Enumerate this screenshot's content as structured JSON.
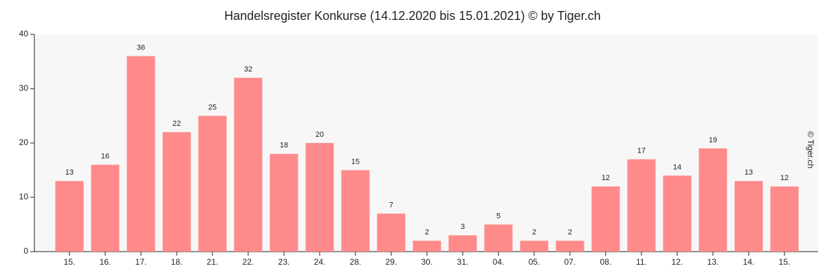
{
  "chart_data": {
    "type": "bar",
    "title": "Handelsregister Konkurse (14.12.2020 bis 15.01.2021) © by Tiger.ch",
    "watermark": "© Tiger.ch",
    "categories": [
      "15.",
      "16.",
      "17.",
      "18.",
      "21.",
      "22.",
      "23.",
      "24.",
      "28.",
      "29.",
      "30.",
      "31.",
      "04.",
      "05.",
      "07.",
      "08.",
      "11.",
      "12.",
      "13.",
      "14.",
      "15."
    ],
    "values": [
      13,
      16,
      36,
      22,
      25,
      32,
      18,
      20,
      15,
      7,
      2,
      3,
      5,
      2,
      2,
      12,
      17,
      14,
      19,
      13,
      12
    ],
    "color": "#ff8a8a",
    "ylim": [
      0,
      40
    ],
    "yticks": [
      0,
      10,
      20,
      30,
      40
    ],
    "grid": false
  }
}
